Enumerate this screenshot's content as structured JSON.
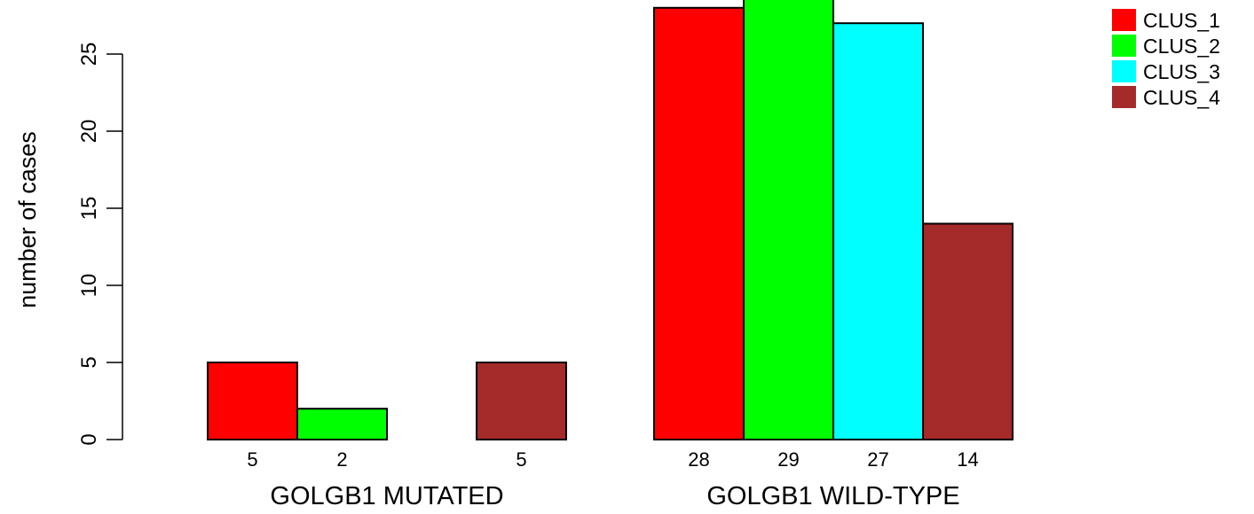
{
  "chart_data": {
    "type": "bar",
    "ylabel": "number of cases",
    "xlabel": "",
    "ylim": [
      0,
      30
    ],
    "yticks": [
      0,
      5,
      10,
      15,
      20,
      25
    ],
    "groups": [
      "GOLGB1 MUTATED",
      "GOLGB1 WILD-TYPE"
    ],
    "series": [
      {
        "name": "CLUS_1",
        "color": "#ff0000",
        "values": [
          5,
          28
        ]
      },
      {
        "name": "CLUS_2",
        "color": "#00ff00",
        "values": [
          2,
          29
        ]
      },
      {
        "name": "CLUS_3",
        "color": "#00ffff",
        "values": [
          0,
          27
        ]
      },
      {
        "name": "CLUS_4",
        "color": "#a52a2a",
        "values": [
          5,
          14
        ]
      }
    ],
    "value_labels": [
      [
        "5",
        "2",
        "",
        "5"
      ],
      [
        "28",
        "29",
        "27",
        "14"
      ]
    ],
    "legend": {
      "position": "top-right"
    },
    "grid": false
  }
}
